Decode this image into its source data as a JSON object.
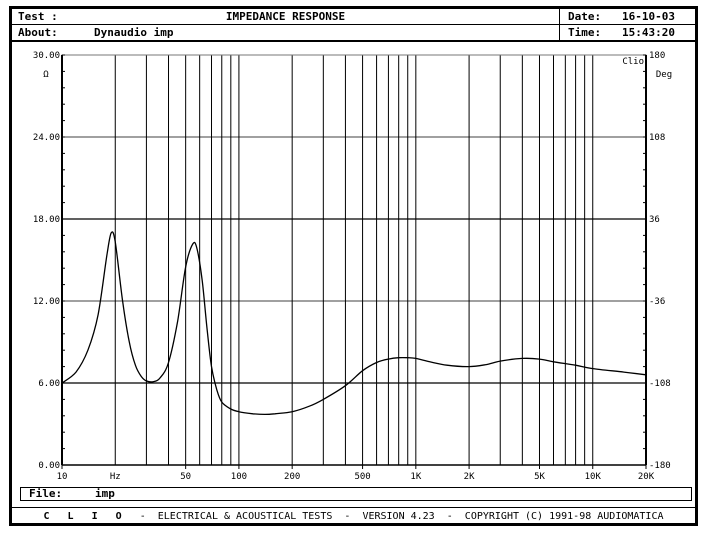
{
  "header": {
    "test_label": "Test :",
    "test_value": "",
    "title": "IMPEDANCE RESPONSE",
    "about_label": "About:",
    "about_value": "Dynaudio imp",
    "date_label": "Date:",
    "date_value": "16-10-03",
    "time_label": "Time:",
    "time_value": "15:43:20"
  },
  "plot": {
    "left_unit": "Ω",
    "right_unit": "Deg",
    "badge": "Clio",
    "x_unit": "Hz"
  },
  "footer": {
    "file_label": "File:",
    "file_value": "imp",
    "brand": "C L I O",
    "tagline": "  -  ELECTRICAL & ACOUSTICAL TESTS  -  VERSION 4.23  -  COPYRIGHT (C) 1991-98 AUDIOMATICA"
  },
  "chart_data": {
    "type": "line",
    "title": "IMPEDANCE RESPONSE",
    "subtitle": "Dynaudio imp",
    "xlabel": "Hz",
    "ylabel": "Ω",
    "y2label": "Deg",
    "xscale": "log",
    "xlim": [
      10,
      20000
    ],
    "ylim": [
      0,
      30
    ],
    "y2lim": [
      -180,
      180
    ],
    "grid": true,
    "x_tick_labels": [
      "10",
      "50",
      "100",
      "200",
      "500",
      "1K",
      "2K",
      "5K",
      "10K",
      "20K"
    ],
    "x_tick_values": [
      10,
      50,
      100,
      200,
      500,
      1000,
      2000,
      5000,
      10000,
      20000
    ],
    "y_tick_labels": [
      "0.00",
      "6.00",
      "12.00",
      "18.00",
      "24.00",
      "30.00"
    ],
    "y_tick_values": [
      0,
      6,
      12,
      18,
      24,
      30
    ],
    "y2_tick_labels": [
      "-180",
      "-108",
      "-36",
      "36",
      "108",
      "180"
    ],
    "y2_tick_values": [
      -180,
      -108,
      -36,
      36,
      108,
      180
    ],
    "series": [
      {
        "name": "Impedance",
        "x": [
          10,
          12,
          14,
          16,
          18,
          19,
          20,
          22,
          24,
          26,
          28,
          30,
          33,
          36,
          40,
          45,
          50,
          55,
          58,
          62,
          66,
          70,
          75,
          80,
          90,
          100,
          120,
          140,
          160,
          200,
          250,
          300,
          400,
          500,
          600,
          700,
          800,
          900,
          1000,
          1200,
          1500,
          2000,
          2500,
          3000,
          4000,
          5000,
          6000,
          8000,
          10000,
          15000,
          20000
        ],
        "values": [
          6.0,
          6.8,
          8.4,
          11.0,
          15.5,
          17.0,
          16.3,
          12.0,
          9.0,
          7.3,
          6.5,
          6.15,
          6.1,
          6.4,
          7.5,
          10.5,
          14.5,
          16.2,
          15.8,
          13.5,
          10.0,
          7.2,
          5.5,
          4.6,
          4.1,
          3.9,
          3.75,
          3.7,
          3.75,
          3.9,
          4.3,
          4.8,
          5.8,
          6.9,
          7.5,
          7.75,
          7.85,
          7.85,
          7.8,
          7.55,
          7.3,
          7.2,
          7.35,
          7.6,
          7.8,
          7.75,
          7.55,
          7.3,
          7.05,
          6.8,
          6.6
        ]
      }
    ]
  }
}
